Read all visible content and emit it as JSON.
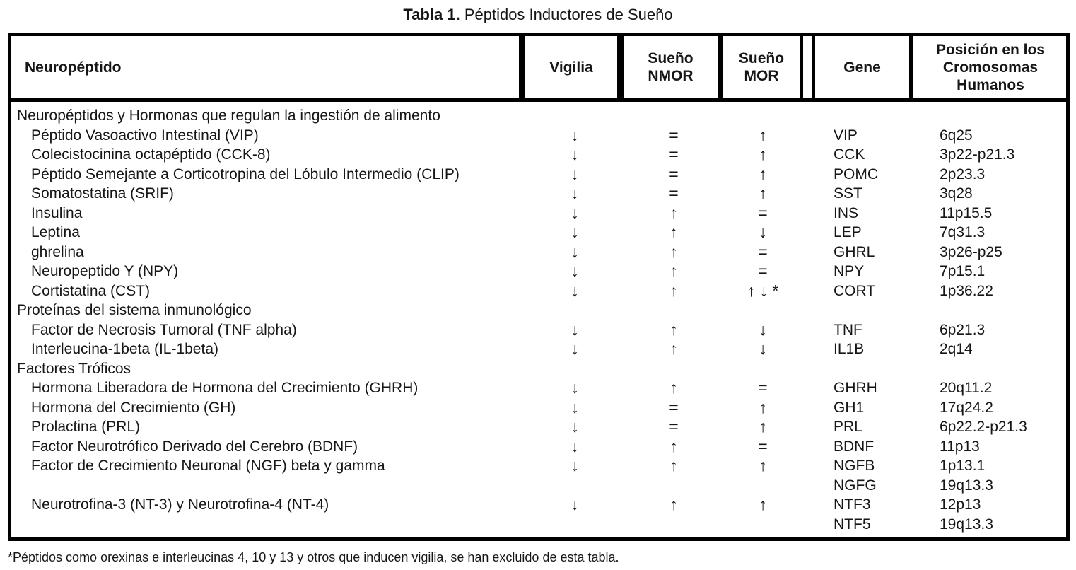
{
  "title": {
    "prefix": "Tabla 1.",
    "rest": " Péptidos Inductores de Sueño"
  },
  "table": {
    "header": {
      "neuropeptido": "Neuropéptido",
      "vigilia": "Vigilia",
      "sueno_nmor": "Sueño NMOR",
      "sueno_mor": "Sueño MOR",
      "gene": "Gene",
      "posicion": "Posición en los Cromosomas Humanos"
    },
    "rows": [
      {
        "type": "section",
        "name": "Neuropéptidos y Hormonas que regulan la ingestión de alimento"
      },
      {
        "type": "item",
        "name": "Péptido Vasoactivo Intestinal (VIP)",
        "vigilia": "↓",
        "sueno_nmor": "=",
        "sueno_mor": "↑",
        "gene": "VIP",
        "posicion": "6q25"
      },
      {
        "type": "item",
        "name": "Colecistocinina octapéptido (CCK-8)",
        "vigilia": "↓",
        "sueno_nmor": "=",
        "sueno_mor": "↑",
        "gene": "CCK",
        "posicion": "3p22-p21.3"
      },
      {
        "type": "item",
        "name": "Péptido Semejante a Corticotropina del Lóbulo Intermedio (CLIP)",
        "vigilia": "↓",
        "sueno_nmor": "=",
        "sueno_mor": "↑",
        "gene": "POMC",
        "posicion": "2p23.3"
      },
      {
        "type": "item",
        "name": "Somatostatina (SRIF)",
        "vigilia": "↓",
        "sueno_nmor": "=",
        "sueno_mor": "↑",
        "gene": "SST",
        "posicion": "3q28"
      },
      {
        "type": "item",
        "name": "Insulina",
        "vigilia": "↓",
        "sueno_nmor": "↑",
        "sueno_mor": "=",
        "gene": "INS",
        "posicion": "11p15.5"
      },
      {
        "type": "item",
        "name": "Leptina",
        "vigilia": "↓",
        "sueno_nmor": "↑",
        "sueno_mor": "↓",
        "gene": "LEP",
        "posicion": "7q31.3"
      },
      {
        "type": "item",
        "name": "ghrelina",
        "vigilia": "↓",
        "sueno_nmor": "↑",
        "sueno_mor": "=",
        "gene": "GHRL",
        "posicion": "3p26-p25"
      },
      {
        "type": "item",
        "name": "Neuropeptido Y (NPY)",
        "vigilia": "↓",
        "sueno_nmor": "↑",
        "sueno_mor": "=",
        "gene": "NPY",
        "posicion": "7p15.1"
      },
      {
        "type": "item",
        "name": "Cortistatina (CST)",
        "vigilia": "↓",
        "sueno_nmor": "↑",
        "sueno_mor": "↑ ↓ *",
        "gene": "CORT",
        "posicion": "1p36.22"
      },
      {
        "type": "section",
        "name": "Proteínas del sistema inmunológico"
      },
      {
        "type": "item",
        "name": "Factor de Necrosis Tumoral (TNF alpha)",
        "vigilia": "↓",
        "sueno_nmor": "↑",
        "sueno_mor": "↓",
        "gene": "TNF",
        "posicion": "6p21.3"
      },
      {
        "type": "item",
        "name": "Interleucina-1beta (IL-1beta)",
        "vigilia": "↓",
        "sueno_nmor": "↑",
        "sueno_mor": "↓",
        "gene": "IL1B",
        "posicion": "2q14"
      },
      {
        "type": "section",
        "name": "Factores Tróficos"
      },
      {
        "type": "item",
        "name": "Hormona Liberadora de Hormona del Crecimiento (GHRH)",
        "vigilia": "↓",
        "sueno_nmor": "↑",
        "sueno_mor": "=",
        "gene": "GHRH",
        "posicion": "20q11.2"
      },
      {
        "type": "item",
        "name": "Hormona del Crecimiento (GH)",
        "vigilia": "↓",
        "sueno_nmor": "=",
        "sueno_mor": "↑",
        "gene": "GH1",
        "posicion": "17q24.2"
      },
      {
        "type": "item",
        "name": "Prolactina (PRL)",
        "vigilia": "↓",
        "sueno_nmor": "=",
        "sueno_mor": "↑",
        "gene": "PRL",
        "posicion": "6p22.2-p21.3"
      },
      {
        "type": "item",
        "name": "Factor Neurotrófico Derivado del Cerebro (BDNF)",
        "vigilia": "↓",
        "sueno_nmor": "↑",
        "sueno_mor": "=",
        "gene": "BDNF",
        "posicion": "11p13"
      },
      {
        "type": "item",
        "name": "Factor de Crecimiento Neuronal (NGF) beta y gamma",
        "vigilia": "↓",
        "sueno_nmor": "↑",
        "sueno_mor": "↑",
        "gene": "NGFB",
        "posicion": "1p13.1"
      },
      {
        "type": "item",
        "name": "",
        "vigilia": "",
        "sueno_nmor": "",
        "sueno_mor": "",
        "gene": "NGFG",
        "posicion": "19q13.3"
      },
      {
        "type": "item",
        "name": "Neurotrofina-3 (NT-3) y Neurotrofina-4 (NT-4)",
        "vigilia": "↓",
        "sueno_nmor": "↑",
        "sueno_mor": "↑",
        "gene": "NTF3",
        "posicion": "12p13"
      },
      {
        "type": "item",
        "name": "",
        "vigilia": "",
        "sueno_nmor": "",
        "sueno_mor": "",
        "gene": "NTF5",
        "posicion": "19q13.3"
      }
    ]
  },
  "footnote": "*Péptidos como orexinas e interleucinas 4, 10 y 13 y otros que inducen vigilia, se han excluido de esta tabla.",
  "colors": {
    "text": "#161616",
    "border": "#000000",
    "background": "#ffffff"
  }
}
